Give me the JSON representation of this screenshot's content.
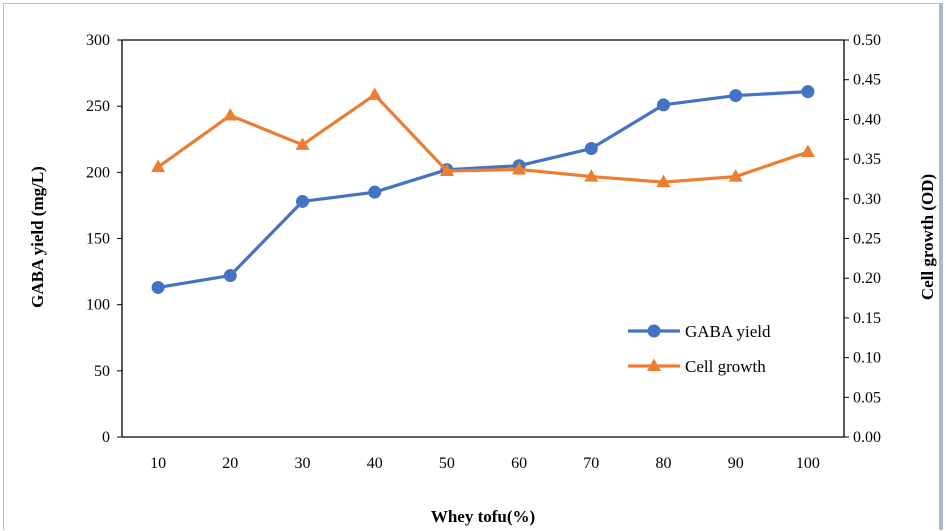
{
  "chart_data": {
    "type": "line",
    "x": [
      10,
      20,
      30,
      40,
      50,
      60,
      70,
      80,
      90,
      100
    ],
    "xlabel": "Whey tofu(%)",
    "ylabel": "GABA yield (mg/L)",
    "y2label": "Cell growth (OD)",
    "ylim": [
      0,
      300
    ],
    "y2lim": [
      0,
      0.5
    ],
    "yticks": [
      "0",
      "50",
      "100",
      "150",
      "200",
      "250",
      "300"
    ],
    "y2ticks": [
      "0.00",
      "0.05",
      "0.10",
      "0.15",
      "0.20",
      "0.25",
      "0.30",
      "0.35",
      "0.40",
      "0.45",
      "0.50"
    ],
    "xticks": [
      "10",
      "20",
      "30",
      "40",
      "50",
      "60",
      "70",
      "80",
      "90",
      "100"
    ],
    "grid": false,
    "legend_position": "lower-right",
    "series": [
      {
        "name": "GABA yield",
        "axis": "left",
        "color": "#4472c4",
        "marker": "circle",
        "values": [
          113,
          122,
          178,
          185,
          202,
          205,
          218,
          251,
          258,
          261
        ]
      },
      {
        "name": "Cell growth",
        "axis": "right",
        "color": "#ed7d31",
        "marker": "triangle",
        "values": [
          0.34,
          0.405,
          0.368,
          0.431,
          0.335,
          0.337,
          0.328,
          0.321,
          0.328,
          0.359
        ]
      }
    ]
  }
}
